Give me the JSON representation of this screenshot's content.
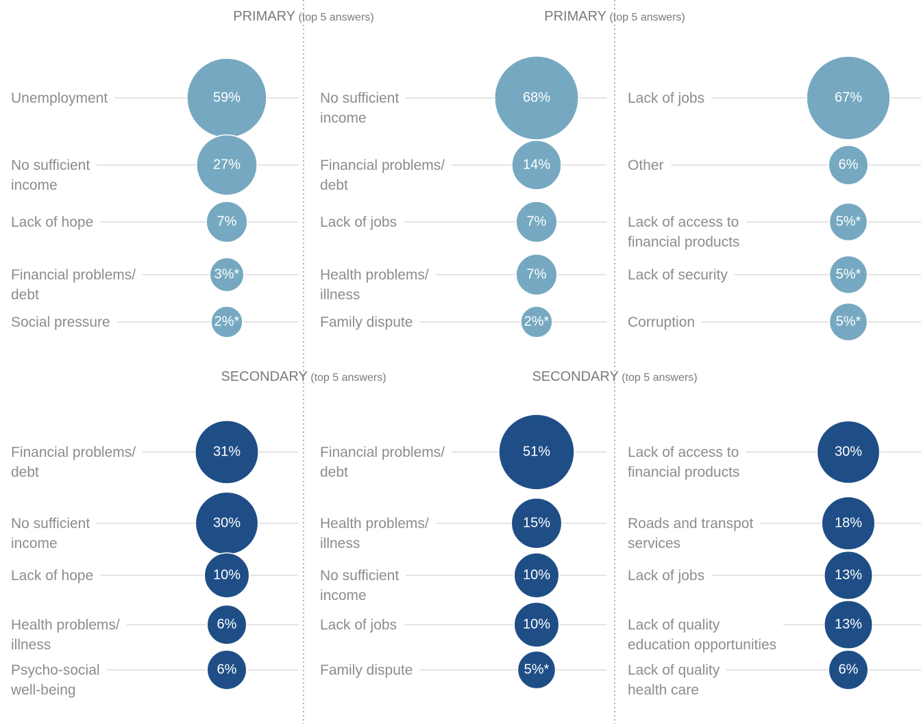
{
  "chart_data": [
    {
      "type": "bubble",
      "title": "PRIMARY",
      "subtitle": "(top 5 answers)",
      "color": "#76a9c1",
      "categories": [
        "Unemployment",
        "No sufficient\nincome",
        "Lack of hope",
        "Financial problems/\ndebt",
        "Social pressure"
      ],
      "values": [
        59,
        27,
        7,
        3,
        2
      ],
      "value_labels": [
        "59%",
        "27%",
        "7%",
        "3%*",
        "2%*"
      ]
    },
    {
      "type": "bubble",
      "title": "PRIMARY",
      "subtitle": "(top 5 answers)",
      "color": "#76a9c1",
      "categories": [
        "No sufficient\nincome",
        "Financial problems/\ndebt",
        "Lack of jobs",
        "Health problems/\nillness",
        "Family dispute"
      ],
      "values": [
        68,
        14,
        7,
        7,
        2
      ],
      "value_labels": [
        "68%",
        "14%",
        "7%",
        "7%",
        "2%*"
      ]
    },
    {
      "type": "bubble",
      "color": "#76a9c1",
      "categories": [
        "Lack of jobs",
        "Other",
        "Lack of access to\nfinancial products",
        "Lack of security",
        "Corruption"
      ],
      "values": [
        67,
        6,
        5,
        5,
        5
      ],
      "value_labels": [
        "67%",
        "6%",
        "5%*",
        "5%*",
        "5%*"
      ]
    },
    {
      "type": "bubble",
      "title": "SECONDARY",
      "subtitle": "(top 5 answers)",
      "color": "#1f4e87",
      "categories": [
        "Financial problems/\ndebt",
        "No sufficient\nincome",
        "Lack of hope",
        "Health problems/\nillness",
        "Psycho-social\nwell-being"
      ],
      "values": [
        31,
        30,
        10,
        6,
        6
      ],
      "value_labels": [
        "31%",
        "30%",
        "10%",
        "6%",
        "6%"
      ]
    },
    {
      "type": "bubble",
      "title": "SECONDARY",
      "subtitle": "(top 5 answers)",
      "color": "#1f4e87",
      "categories": [
        "Financial problems/\ndebt",
        "Health problems/\nillness",
        "No sufficient\nincome",
        "Lack of jobs",
        "Family dispute"
      ],
      "values": [
        51,
        15,
        10,
        10,
        5
      ],
      "value_labels": [
        "51%",
        "15%",
        "10%",
        "10%",
        "5%*"
      ]
    },
    {
      "type": "bubble",
      "color": "#1f4e87",
      "categories": [
        "Lack of access to\nfinancial products",
        "Roads and transpot\nservices",
        "Lack of jobs",
        "Lack of quality\neducation opportunities",
        "Lack of quality\nhealth care"
      ],
      "values": [
        30,
        18,
        13,
        13,
        6
      ],
      "value_labels": [
        "30%",
        "18%",
        "13%",
        "13%",
        "6%"
      ]
    }
  ]
}
